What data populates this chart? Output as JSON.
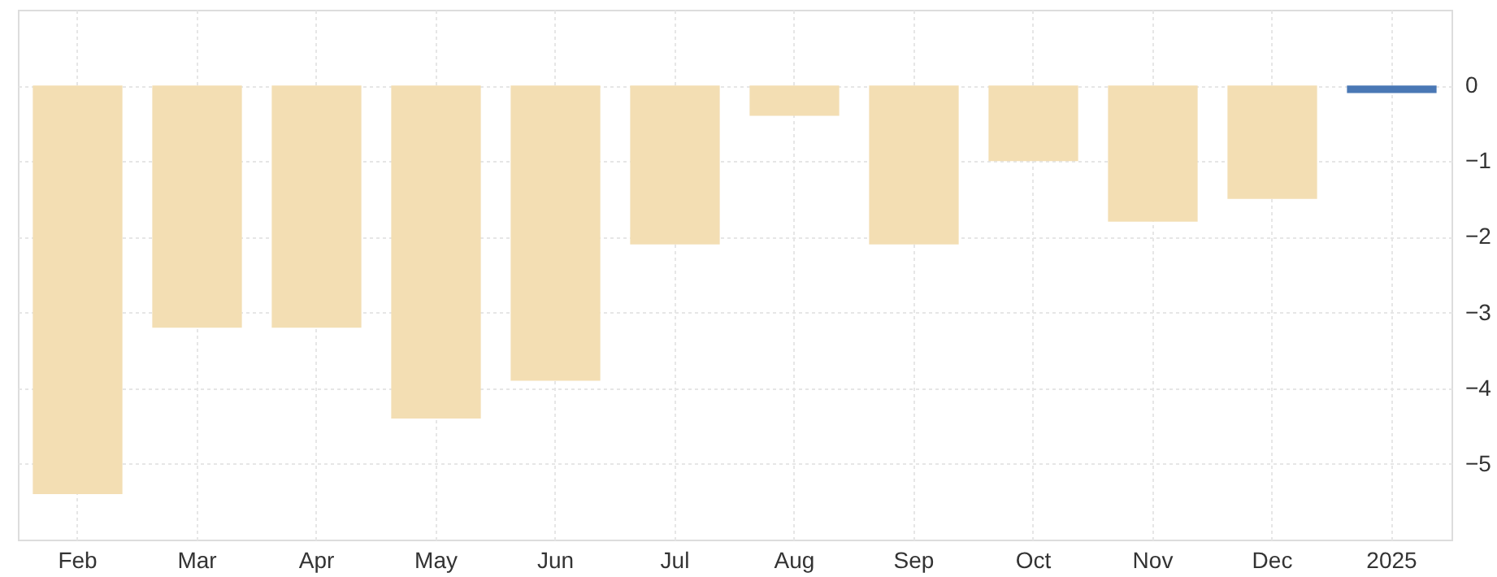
{
  "chart_data": {
    "type": "bar",
    "categories": [
      "Feb",
      "Mar",
      "Apr",
      "May",
      "Jun",
      "Jul",
      "Aug",
      "Sep",
      "Oct",
      "Nov",
      "Dec",
      "2025"
    ],
    "series": [
      {
        "color": "#f3deb3",
        "values": [
          -5.4,
          -3.2,
          -3.2,
          -4.4,
          -3.9,
          -2.1,
          -0.4,
          -2.1,
          -1.0,
          -1.8,
          -1.5,
          null
        ]
      },
      {
        "type": "bar",
        "color": "#4a78b5",
        "values": [
          null,
          null,
          null,
          null,
          null,
          null,
          null,
          null,
          null,
          null,
          null,
          -0.1
        ]
      }
    ],
    "ylim": [
      -6,
      1
    ],
    "yticks": [
      0,
      -1,
      -2,
      -3,
      -4,
      -5
    ],
    "grid": true
  }
}
